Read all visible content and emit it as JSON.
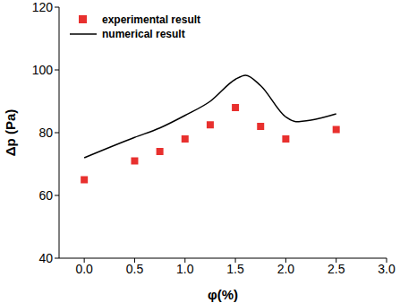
{
  "chart_data": {
    "type": "scatter",
    "x_label": "φ(%)",
    "y_label": "Δp (Pa)",
    "xlim": [
      -0.25,
      3.0
    ],
    "xticks": [
      {
        "value": 0,
        "label": "0.0"
      },
      0.5,
      {
        "value": 1,
        "label": "1.0"
      },
      1.5,
      {
        "value": 2,
        "label": "2.0"
      },
      2.5,
      {
        "value": 3,
        "label": "3.0"
      }
    ],
    "ylim": [
      40,
      120
    ],
    "yticks": [
      40,
      60,
      80,
      100,
      120
    ],
    "grid": false,
    "legend": "top-left",
    "series": [
      {
        "name": "experimental result",
        "type": "scatter",
        "marker": "square",
        "color": "#e8302e",
        "x": [
          0,
          0.5,
          0.75,
          1.0,
          1.25,
          1.5,
          1.75,
          2.0,
          2.5
        ],
        "values": [
          65,
          71,
          74,
          78,
          82.5,
          88,
          82,
          78,
          81
        ]
      },
      {
        "name": "numerical result",
        "type": "line",
        "line_style": "solid",
        "color": "#000000",
        "x": [
          0,
          0.5,
          0.75,
          1.0,
          1.25,
          1.5,
          1.6,
          1.75,
          2.0,
          2.1,
          2.25,
          2.5
        ],
        "values": [
          72,
          78.5,
          81.5,
          85.5,
          90,
          97,
          98.3,
          95,
          85,
          83.5,
          84,
          86
        ]
      }
    ]
  }
}
